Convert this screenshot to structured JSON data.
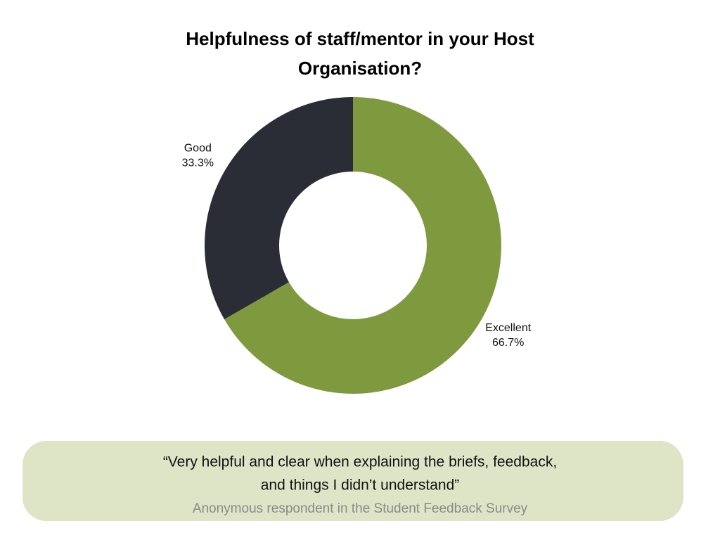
{
  "chart_data": {
    "type": "pie",
    "title": "Helpfulness of staff/mentor in your Host Organisation?",
    "categories": [
      "Excellent",
      "Good"
    ],
    "values": [
      66.7,
      33.3
    ],
    "value_labels": [
      "66.7%",
      "33.3%"
    ],
    "colors": [
      "#7f9a3e",
      "#2a2d35"
    ],
    "donut": true
  },
  "quote": {
    "lines": [
      "“Very helpful and clear when explaining the briefs, feedback,",
      "and things I didn’t understand”"
    ],
    "source": "Anonymous respondent in the Student Feedback Survey"
  }
}
